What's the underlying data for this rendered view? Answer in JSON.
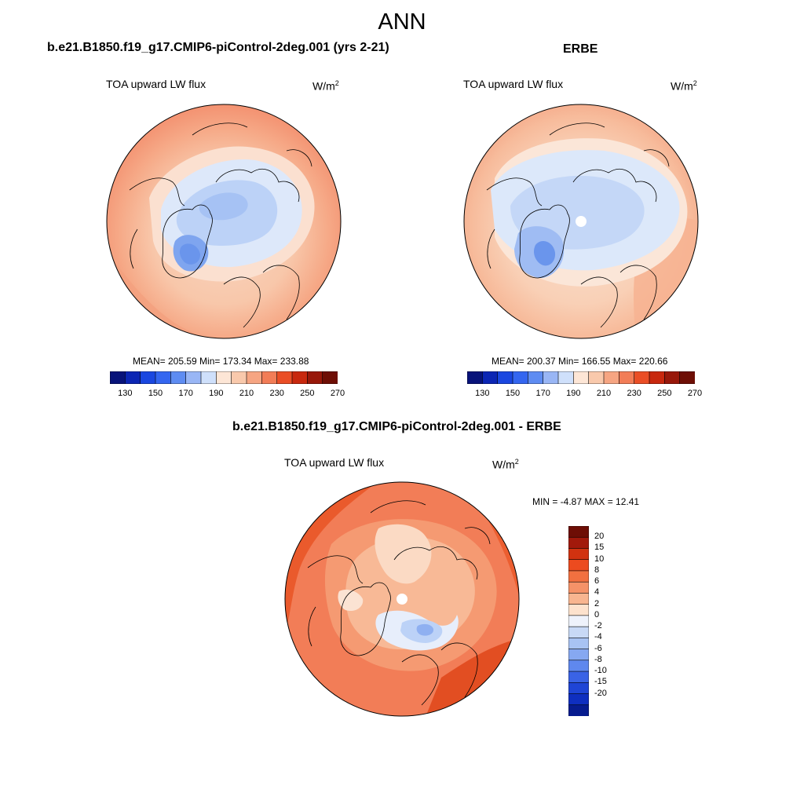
{
  "title": "ANN",
  "panels": {
    "model": {
      "title": "b.e21.B1850.f19_g17.CMIP6-piControl-2deg.001 (yrs 2-21)",
      "variable": "TOA upward LW flux",
      "units_base": "W/m",
      "units_exp": "2",
      "stats": "MEAN= 205.59  Min= 173.34  Max= 233.88"
    },
    "obs": {
      "title": "ERBE",
      "variable": "TOA upward LW flux",
      "units_base": "W/m",
      "units_exp": "2",
      "stats": "MEAN= 200.37  Min= 166.55  Max= 220.66"
    },
    "diff": {
      "title": "b.e21.B1850.f19_g17.CMIP6-piControl-2deg.001 - ERBE",
      "variable": "TOA upward LW flux",
      "units_base": "W/m",
      "units_exp": "2",
      "stats": "MIN =  -4.87 MAX =  12.41"
    }
  },
  "colorbar_abs": {
    "colors": [
      "#08137a",
      "#0c26b4",
      "#1a47e0",
      "#3466f0",
      "#5e8cf2",
      "#99b6f5",
      "#cfe0fb",
      "#fde6d6",
      "#f9c9ac",
      "#f6a582",
      "#f27d57",
      "#ea4e26",
      "#c8280e",
      "#98180a",
      "#6e0e05"
    ],
    "labels": [
      "130",
      "150",
      "170",
      "190",
      "210",
      "230",
      "250",
      "270"
    ]
  },
  "colorbar_diff": {
    "colors": [
      "#6e0e05",
      "#a2190b",
      "#d13210",
      "#ec4b1f",
      "#f27040",
      "#f59268",
      "#f8b590",
      "#fde2cd",
      "#eef2fb",
      "#c8d9f6",
      "#a8c3f3",
      "#86a8f1",
      "#5f88ee",
      "#3a63e6",
      "#1f45d6",
      "#0f2fc0",
      "#071c8f"
    ],
    "labels": [
      "20",
      "15",
      "10",
      "8",
      "6",
      "4",
      "2",
      "0",
      "-2",
      "-4",
      "-6",
      "-8",
      "-10",
      "-15",
      "-20"
    ]
  },
  "chart_data": [
    {
      "type": "map",
      "projection": "north-polar-stereographic",
      "title": "b.e21.B1850.f19_g17.CMIP6-piControl-2deg.001 (yrs 2-21)",
      "variable": "TOA upward LW flux",
      "units": "W/m2",
      "mean": 205.59,
      "min": 173.34,
      "max": 233.88,
      "colorbar_levels": [
        130,
        140,
        150,
        160,
        170,
        180,
        190,
        200,
        210,
        220,
        230,
        240,
        250,
        260,
        270
      ]
    },
    {
      "type": "map",
      "projection": "north-polar-stereographic",
      "title": "ERBE",
      "variable": "TOA upward LW flux",
      "units": "W/m2",
      "mean": 200.37,
      "min": 166.55,
      "max": 220.66,
      "colorbar_levels": [
        130,
        140,
        150,
        160,
        170,
        180,
        190,
        200,
        210,
        220,
        230,
        240,
        250,
        260,
        270
      ]
    },
    {
      "type": "map",
      "projection": "north-polar-stereographic",
      "title": "b.e21.B1850.f19_g17.CMIP6-piControl-2deg.001 - ERBE",
      "variable": "TOA upward LW flux",
      "units": "W/m2",
      "min": -4.87,
      "max": 12.41,
      "colorbar_levels": [
        -20,
        -15,
        -10,
        -8,
        -6,
        -4,
        -2,
        0,
        2,
        4,
        6,
        8,
        10,
        15,
        20
      ]
    }
  ]
}
